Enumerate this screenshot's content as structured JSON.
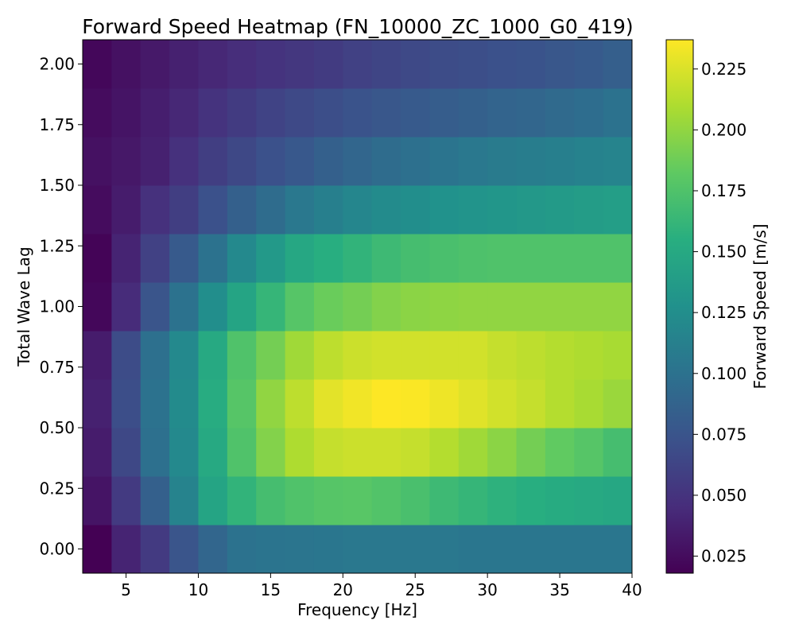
{
  "chart_data": {
    "type": "heatmap",
    "title": "Forward Speed Heatmap (FN_10000_ZC_1000_G0_419)",
    "xlabel": "Frequency [Hz]",
    "ylabel": "Total Wave Lag",
    "colorbar_label": "Forward Speed [m/s]",
    "colormap": "viridis",
    "xlim": [
      2,
      40
    ],
    "ylim": [
      -0.1,
      2.1
    ],
    "x_ticks": [
      5,
      10,
      15,
      20,
      25,
      30,
      35,
      40
    ],
    "y_ticks": [
      0.0,
      0.25,
      0.5,
      0.75,
      1.0,
      1.25,
      1.5,
      1.75,
      2.0
    ],
    "colorbar_range": [
      0.018,
      0.237
    ],
    "colorbar_ticks": [
      0.025,
      0.05,
      0.075,
      0.1,
      0.125,
      0.15,
      0.175,
      0.2,
      0.225
    ],
    "x_bins": [
      2,
      4,
      6,
      8,
      10,
      12,
      14,
      16,
      18,
      20,
      22,
      24,
      26,
      28,
      30,
      32,
      34,
      36,
      38,
      40
    ],
    "y_centers": [
      0.0,
      0.2,
      0.4,
      0.6,
      0.8,
      1.0,
      1.2,
      1.4,
      1.6,
      1.8,
      2.0
    ],
    "values": [
      [
        0.018,
        0.04,
        0.055,
        0.075,
        0.09,
        0.1,
        0.102,
        0.103,
        0.104,
        0.105,
        0.105,
        0.105,
        0.105,
        0.104,
        0.104,
        0.104,
        0.104,
        0.104,
        0.104
      ],
      [
        0.03,
        0.055,
        0.085,
        0.115,
        0.145,
        0.16,
        0.17,
        0.175,
        0.178,
        0.179,
        0.176,
        0.172,
        0.166,
        0.162,
        0.158,
        0.155,
        0.152,
        0.15,
        0.148
      ],
      [
        0.035,
        0.065,
        0.098,
        0.12,
        0.15,
        0.175,
        0.195,
        0.21,
        0.218,
        0.22,
        0.22,
        0.218,
        0.212,
        0.205,
        0.198,
        0.19,
        0.183,
        0.178,
        0.17
      ],
      [
        0.038,
        0.07,
        0.1,
        0.122,
        0.153,
        0.178,
        0.2,
        0.215,
        0.228,
        0.233,
        0.237,
        0.236,
        0.232,
        0.227,
        0.222,
        0.218,
        0.212,
        0.208,
        0.203
      ],
      [
        0.035,
        0.068,
        0.098,
        0.12,
        0.15,
        0.175,
        0.19,
        0.205,
        0.215,
        0.22,
        0.222,
        0.222,
        0.222,
        0.222,
        0.218,
        0.215,
        0.212,
        0.21,
        0.208
      ],
      [
        0.022,
        0.045,
        0.075,
        0.1,
        0.125,
        0.145,
        0.162,
        0.178,
        0.186,
        0.19,
        0.195,
        0.198,
        0.199,
        0.2,
        0.2,
        0.2,
        0.2,
        0.2,
        0.2
      ],
      [
        0.02,
        0.04,
        0.06,
        0.08,
        0.1,
        0.12,
        0.135,
        0.148,
        0.155,
        0.16,
        0.166,
        0.17,
        0.172,
        0.174,
        0.175,
        0.175,
        0.175,
        0.175,
        0.175
      ],
      [
        0.025,
        0.035,
        0.048,
        0.058,
        0.072,
        0.085,
        0.095,
        0.105,
        0.112,
        0.118,
        0.122,
        0.125,
        0.128,
        0.13,
        0.132,
        0.134,
        0.136,
        0.138,
        0.14
      ],
      [
        0.028,
        0.032,
        0.038,
        0.048,
        0.058,
        0.065,
        0.072,
        0.078,
        0.085,
        0.09,
        0.095,
        0.098,
        0.102,
        0.105,
        0.108,
        0.11,
        0.112,
        0.114,
        0.116
      ],
      [
        0.025,
        0.03,
        0.036,
        0.042,
        0.05,
        0.056,
        0.062,
        0.066,
        0.07,
        0.074,
        0.077,
        0.08,
        0.082,
        0.085,
        0.088,
        0.09,
        0.093,
        0.096,
        0.1
      ],
      [
        0.022,
        0.028,
        0.033,
        0.038,
        0.042,
        0.046,
        0.05,
        0.053,
        0.056,
        0.06,
        0.063,
        0.066,
        0.068,
        0.07,
        0.072,
        0.074,
        0.077,
        0.08,
        0.084
      ]
    ]
  }
}
